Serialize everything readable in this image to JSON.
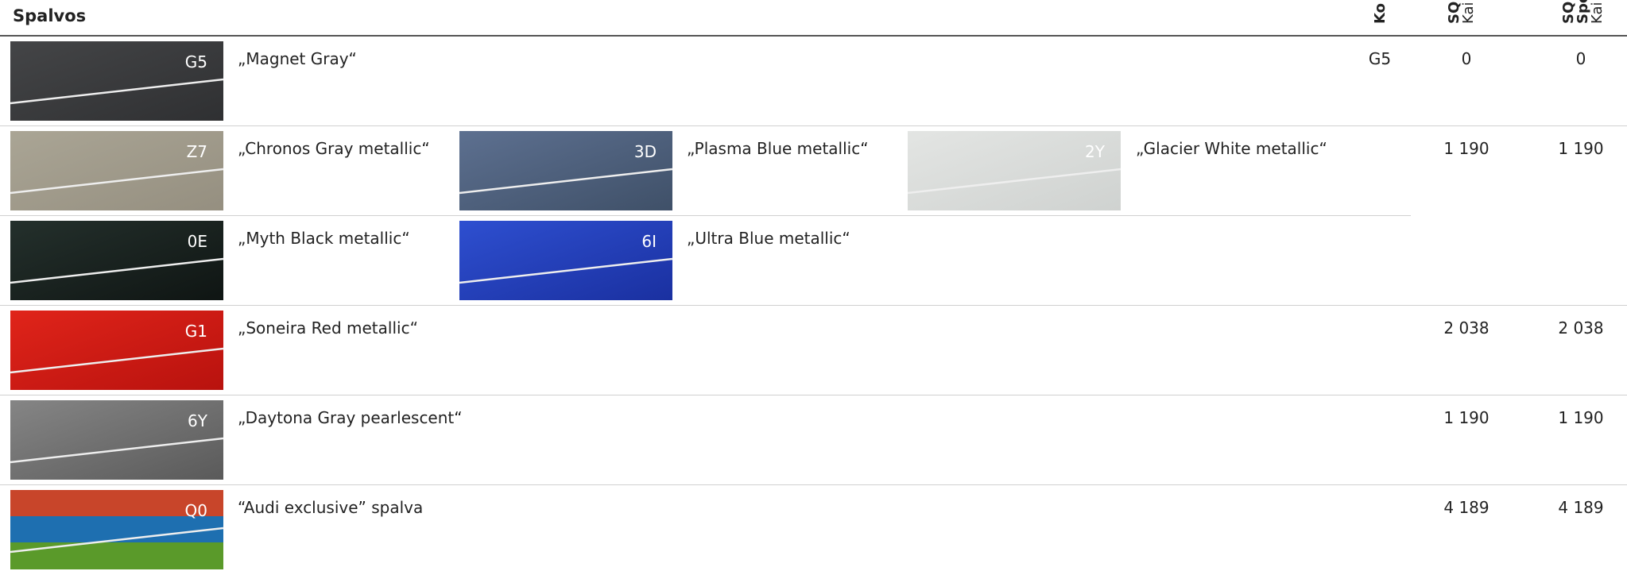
{
  "header": {
    "title": "Spalvos",
    "columns": [
      [
        "Ko"
      ],
      [
        "SQ",
        "Kai"
      ],
      [
        "SQ",
        "Spo",
        "Kai"
      ]
    ]
  },
  "rows": [
    {
      "lines": [
        [
          {
            "code": "G5",
            "name": "„Magnet Gray“"
          }
        ]
      ],
      "code": "G5",
      "prices": [
        "0",
        "0"
      ]
    },
    {
      "lines": [
        [
          {
            "code": "Z7",
            "name": "„Chronos Gray metallic“"
          },
          {
            "code": "3D",
            "name": "„Plasma Blue metallic“"
          },
          {
            "code": "2Y",
            "name": "„Glacier White metallic“"
          }
        ],
        [
          {
            "code": "0E",
            "name": "„Myth Black metallic“"
          },
          {
            "code": "6I",
            "name": "„Ultra Blue metallic“"
          }
        ]
      ],
      "prices": [
        "1 190",
        "1 190"
      ]
    },
    {
      "lines": [
        [
          {
            "code": "G1",
            "name": "„Soneira Red metallic“"
          }
        ]
      ],
      "prices": [
        "2 038",
        "2 038"
      ]
    },
    {
      "lines": [
        [
          {
            "code": "6Y",
            "name": "„Daytona Gray pearlescent“"
          }
        ]
      ],
      "prices": [
        "1 190",
        "1 190"
      ]
    },
    {
      "lines": [
        [
          {
            "code": "Q0",
            "name": "“Audi exclusive” spalva"
          }
        ]
      ],
      "prices": [
        "4 189",
        "4 189"
      ]
    }
  ]
}
